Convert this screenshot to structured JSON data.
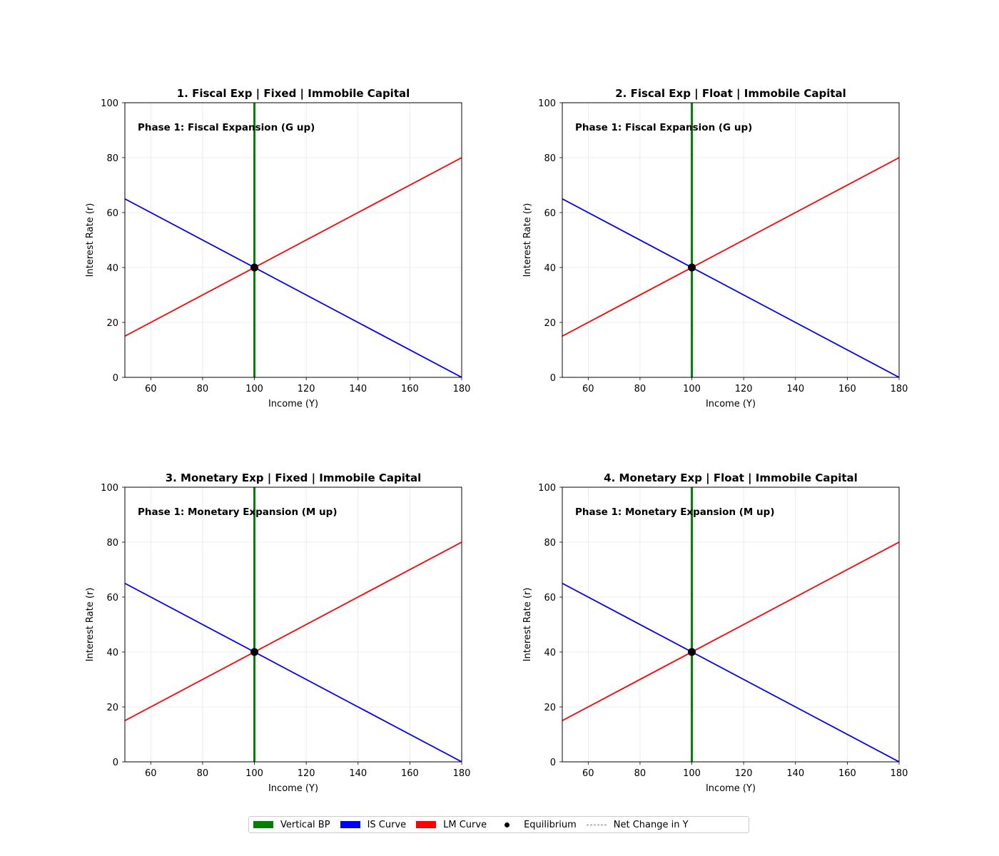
{
  "chart_data": [
    {
      "type": "line",
      "title": "1. Fiscal Exp | Fixed | Immobile Capital",
      "annotation": "Phase 1: Fiscal Expansion (G up)",
      "xlabel": "Income (Y)",
      "ylabel": "Interest Rate (r)",
      "xlim": [
        50,
        180
      ],
      "ylim": [
        0,
        100
      ],
      "xticks": [
        60,
        80,
        100,
        120,
        140,
        160,
        180
      ],
      "yticks": [
        0,
        20,
        40,
        60,
        80,
        100
      ],
      "grid": true,
      "series": [
        {
          "name": "Vertical BP",
          "x": [
            100,
            100
          ],
          "y": [
            0,
            100
          ]
        },
        {
          "name": "IS Curve",
          "x": [
            50,
            180
          ],
          "y": [
            65,
            0
          ]
        },
        {
          "name": "LM Curve",
          "x": [
            50,
            180
          ],
          "y": [
            15,
            80
          ]
        },
        {
          "name": "Equilibrium",
          "x": [
            100
          ],
          "y": [
            40
          ]
        }
      ]
    },
    {
      "type": "line",
      "title": "2. Fiscal Exp | Float | Immobile Capital",
      "annotation": "Phase 1: Fiscal Expansion (G up)",
      "xlabel": "Income (Y)",
      "ylabel": "Interest Rate (r)",
      "xlim": [
        50,
        180
      ],
      "ylim": [
        0,
        100
      ],
      "xticks": [
        60,
        80,
        100,
        120,
        140,
        160,
        180
      ],
      "yticks": [
        0,
        20,
        40,
        60,
        80,
        100
      ],
      "grid": true,
      "series": [
        {
          "name": "Vertical BP",
          "x": [
            100,
            100
          ],
          "y": [
            0,
            100
          ]
        },
        {
          "name": "IS Curve",
          "x": [
            50,
            180
          ],
          "y": [
            65,
            0
          ]
        },
        {
          "name": "LM Curve",
          "x": [
            50,
            180
          ],
          "y": [
            15,
            80
          ]
        },
        {
          "name": "Equilibrium",
          "x": [
            100
          ],
          "y": [
            40
          ]
        }
      ]
    },
    {
      "type": "line",
      "title": "3. Monetary Exp | Fixed | Immobile Capital",
      "annotation": "Phase 1: Monetary Expansion (M up)",
      "xlabel": "Income (Y)",
      "ylabel": "Interest Rate (r)",
      "xlim": [
        50,
        180
      ],
      "ylim": [
        0,
        100
      ],
      "xticks": [
        60,
        80,
        100,
        120,
        140,
        160,
        180
      ],
      "yticks": [
        0,
        20,
        40,
        60,
        80,
        100
      ],
      "grid": true,
      "series": [
        {
          "name": "Vertical BP",
          "x": [
            100,
            100
          ],
          "y": [
            0,
            100
          ]
        },
        {
          "name": "IS Curve",
          "x": [
            50,
            180
          ],
          "y": [
            65,
            0
          ]
        },
        {
          "name": "LM Curve",
          "x": [
            50,
            180
          ],
          "y": [
            15,
            80
          ]
        },
        {
          "name": "Equilibrium",
          "x": [
            100
          ],
          "y": [
            40
          ]
        }
      ]
    },
    {
      "type": "line",
      "title": "4. Monetary Exp | Float | Immobile Capital",
      "annotation": "Phase 1: Monetary Expansion (M up)",
      "xlabel": "Income (Y)",
      "ylabel": "Interest Rate (r)",
      "xlim": [
        50,
        180
      ],
      "ylim": [
        0,
        100
      ],
      "xticks": [
        60,
        80,
        100,
        120,
        140,
        160,
        180
      ],
      "yticks": [
        0,
        20,
        40,
        60,
        80,
        100
      ],
      "grid": true,
      "series": [
        {
          "name": "Vertical BP",
          "x": [
            100,
            100
          ],
          "y": [
            0,
            100
          ]
        },
        {
          "name": "IS Curve",
          "x": [
            50,
            180
          ],
          "y": [
            65,
            0
          ]
        },
        {
          "name": "LM Curve",
          "x": [
            50,
            180
          ],
          "y": [
            15,
            80
          ]
        },
        {
          "name": "Equilibrium",
          "x": [
            100
          ],
          "y": [
            40
          ]
        }
      ]
    }
  ],
  "colors": {
    "bp": "#008000",
    "is": "#0000ff",
    "lm": "#ff0000",
    "equilibrium": "#000000",
    "net_change": "#808080"
  },
  "legend": {
    "placement": "bottom-center",
    "items": [
      {
        "label": "Vertical BP",
        "marker": "patch",
        "color": "#008000"
      },
      {
        "label": "IS Curve",
        "marker": "patch",
        "color": "#0000ff"
      },
      {
        "label": "LM Curve",
        "marker": "patch",
        "color": "#ff0000"
      },
      {
        "label": "Equilibrium",
        "marker": "dot",
        "color": "#000000"
      },
      {
        "label": "Net Change in Y",
        "marker": "dashed-line",
        "color": "#808080"
      }
    ]
  }
}
